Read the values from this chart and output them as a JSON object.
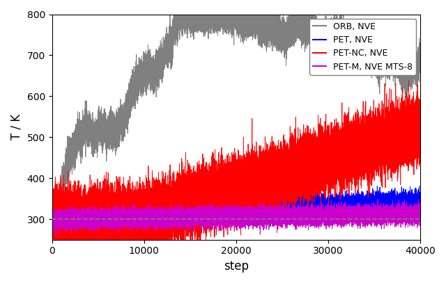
{
  "title": "",
  "xlabel": "step",
  "ylabel": "T / K",
  "xlim": [
    0,
    40000
  ],
  "ylim": [
    250,
    800
  ],
  "yticks": [
    300,
    400,
    500,
    600,
    700,
    800
  ],
  "xticks": [
    0,
    10000,
    20000,
    30000,
    40000
  ],
  "dashed_y": 300,
  "n_steps": 40000,
  "figsize": [
    6.4,
    4.07
  ],
  "dpi": 100,
  "legend_labels": [
    "ORB, NVE",
    "PET, NVE",
    "PET-NC, NVE",
    "PET-M, NVE MTS-8"
  ],
  "legend_colors": [
    "#808080",
    "#0000ff",
    "#ff0000",
    "#cc00cc"
  ],
  "orb_noise": 18,
  "orb_cutoff_step": 20000,
  "pet_drift": 0.001,
  "pet_noise": 12,
  "petnc_end": 520,
  "petnc_noise": 35,
  "petnc_start_step": 10000,
  "petm_drift": 0.0003,
  "petm_noise": 10
}
